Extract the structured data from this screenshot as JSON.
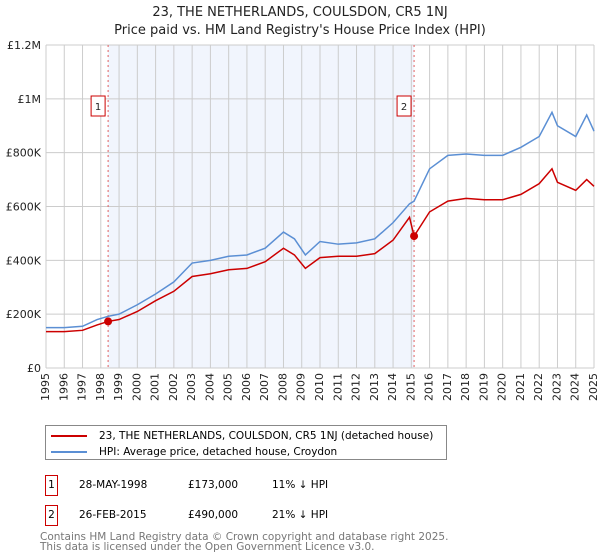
{
  "title": "23, THE NETHERLANDS, COULSDON, CR5 1NJ",
  "subtitle": "Price paid vs. HM Land Registry's House Price Index (HPI)",
  "chart_data": {
    "type": "line",
    "title": "23, THE NETHERLANDS, COULSDON, CR5 1NJ",
    "subtitle": "Price paid vs. HM Land Registry's House Price Index (HPI)",
    "xlim": [
      1995,
      2025.1
    ],
    "ylim": [
      0,
      1200000
    ],
    "xticks": [
      "1995",
      "1996",
      "1997",
      "1998",
      "1999",
      "2000",
      "2001",
      "2002",
      "2003",
      "2004",
      "2005",
      "2006",
      "2007",
      "2008",
      "2009",
      "2010",
      "2011",
      "2012",
      "2013",
      "2014",
      "2015",
      "2016",
      "2017",
      "2018",
      "2019",
      "2020",
      "2021",
      "2022",
      "2023",
      "2024",
      "2025"
    ],
    "yticks": [
      {
        "v": 0,
        "label": "£0"
      },
      {
        "v": 200000,
        "label": "£200K"
      },
      {
        "v": 400000,
        "label": "£400K"
      },
      {
        "v": 600000,
        "label": "£600K"
      },
      {
        "v": 800000,
        "label": "£800K"
      },
      {
        "v": 1000000,
        "label": "£1M"
      },
      {
        "v": 1200000,
        "label": "£1.2M"
      }
    ],
    "grid": true,
    "series": [
      {
        "name": "23, THE NETHERLANDS, COULSDON, CR5 1NJ (detached house)",
        "color": "#cc0000",
        "x": [
          1995,
          1996,
          1997,
          1997.8,
          1998.4,
          1999,
          2000,
          2001,
          2002,
          2003,
          2004,
          2005,
          2006,
          2007,
          2008,
          2008.6,
          2009.2,
          2010,
          2011,
          2012,
          2013,
          2014,
          2014.9,
          2015.15,
          2016,
          2017,
          2018,
          2019,
          2020,
          2021,
          2022,
          2022.7,
          2023,
          2024,
          2024.6,
          2025
        ],
        "y": [
          135000,
          135000,
          140000,
          160000,
          173000,
          180000,
          210000,
          250000,
          285000,
          340000,
          350000,
          365000,
          370000,
          395000,
          445000,
          420000,
          370000,
          410000,
          415000,
          415000,
          425000,
          475000,
          560000,
          490000,
          580000,
          620000,
          630000,
          625000,
          625000,
          645000,
          685000,
          740000,
          690000,
          660000,
          700000,
          675000
        ]
      },
      {
        "name": "HPI: Average price, detached house, Croydon",
        "color": "#5b8fd4",
        "x": [
          1995,
          1996,
          1997,
          1997.8,
          1998.4,
          1999,
          2000,
          2001,
          2002,
          2003,
          2004,
          2005,
          2006,
          2007,
          2008,
          2008.6,
          2009.2,
          2010,
          2011,
          2012,
          2013,
          2014,
          2014.9,
          2015.15,
          2016,
          2017,
          2018,
          2019,
          2020,
          2021,
          2022,
          2022.7,
          2023,
          2024,
          2024.6,
          2025
        ],
        "y": [
          150000,
          150000,
          155000,
          180000,
          192000,
          200000,
          235000,
          275000,
          320000,
          390000,
          400000,
          415000,
          420000,
          445000,
          505000,
          480000,
          420000,
          470000,
          460000,
          465000,
          480000,
          540000,
          610000,
          620000,
          740000,
          790000,
          795000,
          790000,
          790000,
          820000,
          860000,
          950000,
          900000,
          860000,
          940000,
          880000
        ]
      }
    ],
    "sales": [
      {
        "id": "1",
        "x": 1998.4,
        "y": 173000
      },
      {
        "id": "2",
        "x": 2015.15,
        "y": 490000
      }
    ],
    "shade": [
      1998.4,
      2015.15
    ]
  },
  "legend": {
    "red": "23, THE NETHERLANDS, COULSDON, CR5 1NJ (detached house)",
    "blue": "HPI: Average price, detached house, Croydon"
  },
  "transactions": [
    {
      "id": "1",
      "date": "28-MAY-1998",
      "price": "£173,000",
      "hpi": "11% ↓ HPI"
    },
    {
      "id": "2",
      "date": "26-FEB-2015",
      "price": "£490,000",
      "hpi": "21% ↓ HPI"
    }
  ],
  "footer": [
    "Contains HM Land Registry data © Crown copyright and database right 2025.",
    "This data is licensed under the Open Government Licence v3.0."
  ]
}
